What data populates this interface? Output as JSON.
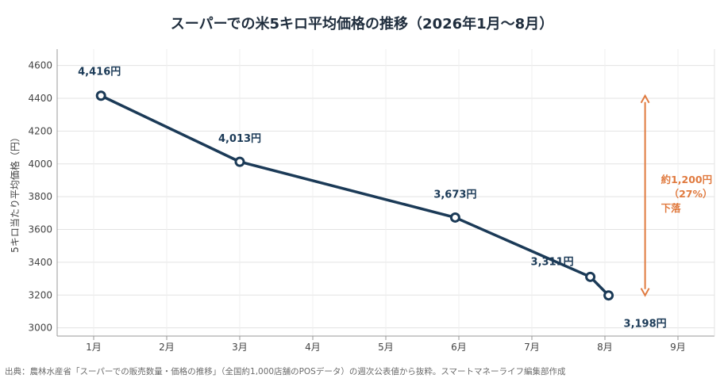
{
  "title": "スーパーでの米5キロ平均価格の推移（2026年1月〜8月）",
  "source": "出典：農林水産省「スーパーでの販売数量・価格の推移」（全国約1,000店舗のPOSデータ）の週次公表値から抜粋。スマートマネーライフ編集部作成",
  "chart_data": {
    "type": "line",
    "title": "スーパーでの米5キロ平均価格の推移（2026年1月〜8月）",
    "xlabel": "",
    "ylabel": "5キロ当たり平均価格（円）",
    "xlim": [
      0.5,
      9.5
    ],
    "ylim": [
      2950,
      4700
    ],
    "x_ticks": [
      {
        "x": 1,
        "label": "1月"
      },
      {
        "x": 2,
        "label": "2月"
      },
      {
        "x": 3,
        "label": "3月"
      },
      {
        "x": 4,
        "label": "4月"
      },
      {
        "x": 5,
        "label": "5月"
      },
      {
        "x": 6,
        "label": "6月"
      },
      {
        "x": 7,
        "label": "7月"
      },
      {
        "x": 8,
        "label": "8月"
      },
      {
        "x": 9,
        "label": "9月"
      }
    ],
    "y_ticks": [
      3000,
      3200,
      3400,
      3600,
      3800,
      4000,
      4200,
      4400,
      4600
    ],
    "grid": true,
    "series": [
      {
        "color": "#1b3a57",
        "points": [
          {
            "x": 1.1,
            "y": 4416,
            "label": "4,416円"
          },
          {
            "x": 3.0,
            "y": 4013,
            "label": "4,013円"
          },
          {
            "x": 5.95,
            "y": 3673,
            "label": "3,673円"
          },
          {
            "x": 7.8,
            "y": 3311,
            "label": "3,311円"
          },
          {
            "x": 8.05,
            "y": 3198,
            "label": "3,198円"
          }
        ]
      }
    ],
    "annotation": {
      "lines": [
        "約1,200円",
        "（27%）",
        "下落"
      ],
      "color": "#e07a3f",
      "x": 8.55,
      "y_from": 4416,
      "y_to": 3198
    }
  }
}
